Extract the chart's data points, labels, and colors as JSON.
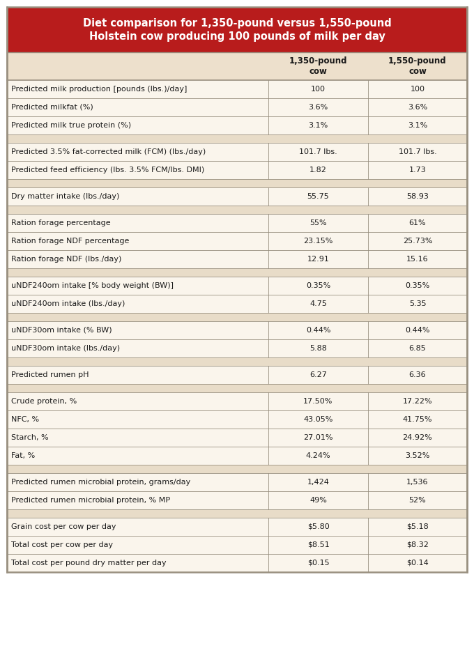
{
  "title_line1": "Diet comparison for 1,350-pound versus 1,550-pound",
  "title_line2": "Holstein cow producing 100 pounds of milk per day",
  "header_bg": "#b81c1c",
  "header_fg": "#ffffff",
  "subheader_bg": "#ede0cc",
  "row_bg_light": "#faf5ec",
  "row_bg_separator": "#e8dcc8",
  "border_color": "#999080",
  "text_color": "#1a1a1a",
  "rows": [
    {
      "label": "Predicted milk production [pounds (lbs.)/day]",
      "v1": "100",
      "v2": "100",
      "sep": false
    },
    {
      "label": "Predicted milkfat (%)",
      "v1": "3.6%",
      "v2": "3.6%",
      "sep": false
    },
    {
      "label": "Predicted milk true protein (%)",
      "v1": "3.1%",
      "v2": "3.1%",
      "sep": false
    },
    {
      "label": "",
      "v1": "",
      "v2": "",
      "sep": true
    },
    {
      "label": "Predicted 3.5% fat-corrected milk (FCM) (lbs./day)",
      "v1": "101.7 lbs.",
      "v2": "101.7 lbs.",
      "sep": false
    },
    {
      "label": "Predicted feed efficiency (lbs. 3.5% FCM/lbs. DMI)",
      "v1": "1.82",
      "v2": "1.73",
      "sep": false
    },
    {
      "label": "",
      "v1": "",
      "v2": "",
      "sep": true
    },
    {
      "label": "Dry matter intake (lbs./day)",
      "v1": "55.75",
      "v2": "58.93",
      "sep": false
    },
    {
      "label": "",
      "v1": "",
      "v2": "",
      "sep": true
    },
    {
      "label": "Ration forage percentage",
      "v1": "55%",
      "v2": "61%",
      "sep": false
    },
    {
      "label": "Ration forage NDF percentage",
      "v1": "23.15%",
      "v2": "25.73%",
      "sep": false
    },
    {
      "label": "Ration forage NDF (lbs./day)",
      "v1": "12.91",
      "v2": "15.16",
      "sep": false
    },
    {
      "label": "",
      "v1": "",
      "v2": "",
      "sep": true
    },
    {
      "label": "uNDF240om intake [% body weight (BW)]",
      "v1": "0.35%",
      "v2": "0.35%",
      "sep": false
    },
    {
      "label": "uNDF240om intake (lbs./day)",
      "v1": "4.75",
      "v2": "5.35",
      "sep": false
    },
    {
      "label": "",
      "v1": "",
      "v2": "",
      "sep": true
    },
    {
      "label": "uNDF30om intake (% BW)",
      "v1": "0.44%",
      "v2": "0.44%",
      "sep": false
    },
    {
      "label": "uNDF30om intake (lbs./day)",
      "v1": "5.88",
      "v2": "6.85",
      "sep": false
    },
    {
      "label": "",
      "v1": "",
      "v2": "",
      "sep": true
    },
    {
      "label": "Predicted rumen pH",
      "v1": "6.27",
      "v2": "6.36",
      "sep": false
    },
    {
      "label": "",
      "v1": "",
      "v2": "",
      "sep": true
    },
    {
      "label": "Crude protein, %",
      "v1": "17.50%",
      "v2": "17.22%",
      "sep": false
    },
    {
      "label": "NFC, %",
      "v1": "43.05%",
      "v2": "41.75%",
      "sep": false
    },
    {
      "label": "Starch, %",
      "v1": "27.01%",
      "v2": "24.92%",
      "sep": false
    },
    {
      "label": "Fat, %",
      "v1": "4.24%",
      "v2": "3.52%",
      "sep": false
    },
    {
      "label": "",
      "v1": "",
      "v2": "",
      "sep": true
    },
    {
      "label": "Predicted rumen microbial protein, grams/day",
      "v1": "1,424",
      "v2": "1,536",
      "sep": false
    },
    {
      "label": "Predicted rumen microbial protein, % MP",
      "v1": "49%",
      "v2": "52%",
      "sep": false
    },
    {
      "label": "",
      "v1": "",
      "v2": "",
      "sep": true
    },
    {
      "label": "Grain cost per cow per day",
      "v1": "$5.80",
      "v2": "$5.18",
      "sep": false
    },
    {
      "label": "Total cost per cow per day",
      "v1": "$8.51",
      "v2": "$8.32",
      "sep": false
    },
    {
      "label": "Total cost per pound dry matter per day",
      "v1": "$0.15",
      "v2": "$0.14",
      "sep": false
    }
  ]
}
